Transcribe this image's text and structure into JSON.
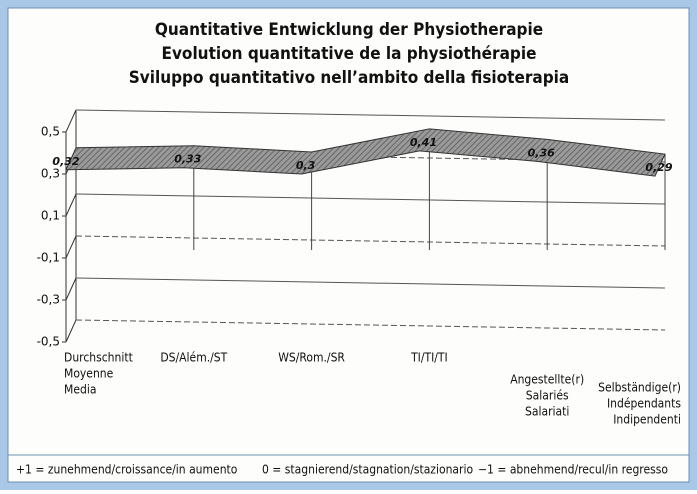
{
  "chart_data": {
    "type": "area3d",
    "title": [
      "Quantitative Entwicklung der Physiotherapie",
      "Evolution quantitative de la physiothérapie",
      "Sviluppo quantitativo nell’ambito della fisioterapia"
    ],
    "categories": [
      [
        "Durchschnitt",
        "Moyenne",
        "Media"
      ],
      [
        "DS/Além./ST"
      ],
      [
        "WS/Rom./SR"
      ],
      [
        "TI/TI/TI"
      ],
      [
        "Angestellte(r)",
        "Salariés",
        "Salariati"
      ],
      [
        "Selbständige(r)",
        "Indépendants",
        "Indipendenti"
      ]
    ],
    "values": [
      0.32,
      0.33,
      0.3,
      0.41,
      0.36,
      0.29
    ],
    "value_labels": [
      "0,32",
      "0,33",
      "0,3",
      "0,41",
      "0,36",
      "0,29"
    ],
    "color": "#8a8a8a",
    "ylim": [
      -0.5,
      0.5
    ],
    "yticks": [
      {
        "value": 0.5,
        "label": "0,5"
      },
      {
        "value": 0.3,
        "label": "0,3"
      },
      {
        "value": 0.1,
        "label": "0,1"
      },
      {
        "value": -0.1,
        "label": "-0,1"
      },
      {
        "value": -0.3,
        "label": "-0,3"
      },
      {
        "value": -0.5,
        "label": "-0,5"
      }
    ],
    "grid": true,
    "notes": [
      "+1 = zunehmend/croissance/in aumento",
      "0 = stagnierend/stagnation/stazionario",
      "−1 = abnehmend/recul/in regresso"
    ]
  }
}
